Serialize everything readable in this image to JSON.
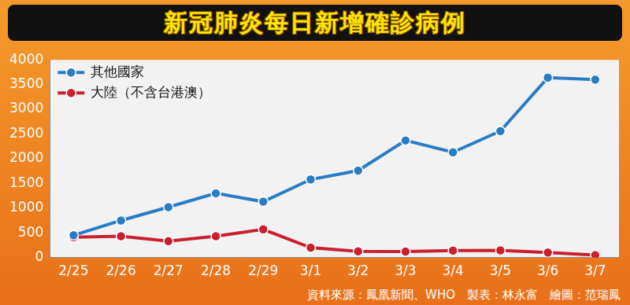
{
  "chart_data": {
    "type": "line",
    "title": "新冠肺炎每日新增確診病例",
    "source": "資料來源：鳳凰新聞、WHO　製表：林永富　繪圖：范瑞鳳",
    "categories": [
      "2/25",
      "2/26",
      "2/27",
      "2/28",
      "2/29",
      "3/1",
      "3/2",
      "3/3",
      "3/4",
      "3/5",
      "3/6",
      "3/7"
    ],
    "series": [
      {
        "name": "其他國家",
        "color": "#2a7cc4",
        "marker": "circle",
        "values": [
          450,
          750,
          1020,
          1300,
          1130,
          1580,
          1760,
          2370,
          2130,
          2560,
          3640,
          3600
        ]
      },
      {
        "name": "大陸（不含台港澳）",
        "color": "#c8202f",
        "marker": "circle",
        "values": [
          410,
          430,
          330,
          430,
          570,
          200,
          125,
          120,
          140,
          145,
          100,
          50
        ]
      }
    ],
    "ylim": [
      0,
      4000
    ],
    "yticks": [
      0,
      500,
      1000,
      1500,
      2000,
      2500,
      3000,
      3500,
      4000
    ],
    "grid": false,
    "legend": "upper left",
    "data_labels": false
  }
}
